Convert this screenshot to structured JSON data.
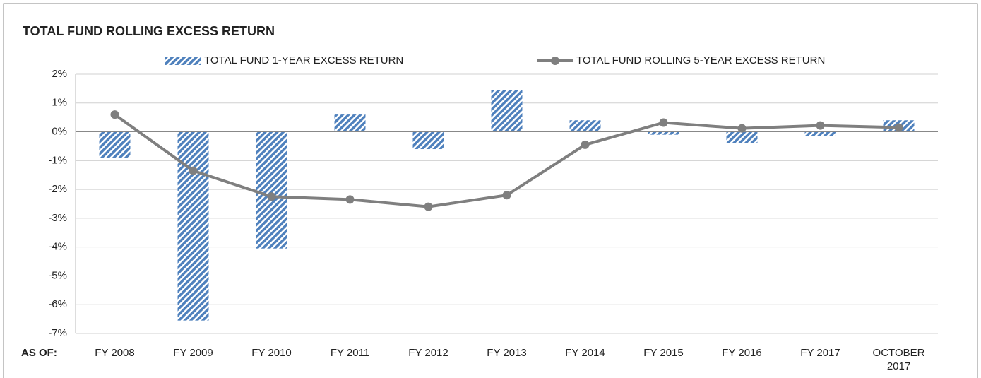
{
  "chart_data": {
    "type": "bar-line",
    "title": "TOTAL FUND ROLLING EXCESS RETURN",
    "x_label": "AS OF:",
    "categories": [
      "FY 2008",
      "FY 2009",
      "FY 2010",
      "FY 2011",
      "FY 2012",
      "FY 2013",
      "FY 2014",
      "FY 2015",
      "FY 2016",
      "FY 2017",
      "OCTOBER 2017"
    ],
    "series": [
      {
        "name": "TOTAL FUND 1-YEAR EXCESS RETURN",
        "type": "bar",
        "color": "#4f81bd",
        "values": [
          -0.9,
          -6.55,
          -4.05,
          0.6,
          -0.6,
          1.45,
          0.4,
          -0.1,
          -0.4,
          -0.15,
          0.4
        ]
      },
      {
        "name": "TOTAL FUND ROLLING 5-YEAR EXCESS RETURN",
        "type": "line",
        "color": "#7f7f7f",
        "values": [
          0.6,
          -1.35,
          -2.25,
          -2.35,
          -2.6,
          -2.2,
          -0.45,
          0.32,
          0.12,
          0.22,
          0.15
        ]
      }
    ],
    "ylim": [
      -7,
      2
    ],
    "yticks": [
      {
        "value": 2,
        "label": "2%"
      },
      {
        "value": 1,
        "label": "1%"
      },
      {
        "value": 0,
        "label": "0%"
      },
      {
        "value": -1,
        "label": "-1%"
      },
      {
        "value": -2,
        "label": "-2%"
      },
      {
        "value": -3,
        "label": "-3%"
      },
      {
        "value": -4,
        "label": "-4%"
      },
      {
        "value": -5,
        "label": "-5%"
      },
      {
        "value": -6,
        "label": "-6%"
      },
      {
        "value": -7,
        "label": "-7%"
      }
    ],
    "grid": true,
    "legend": "top"
  }
}
